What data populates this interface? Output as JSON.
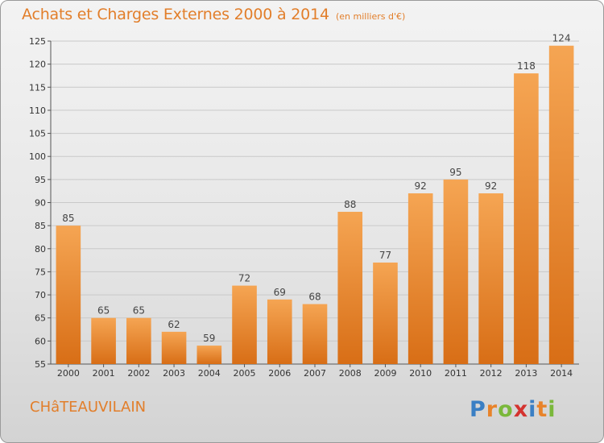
{
  "header": {
    "title": "Achats et Charges Externes 2000 à 2014",
    "unit": "(en milliers d'€)"
  },
  "footer": {
    "place": "CHâTEAUVILAIN",
    "logo": [
      "P",
      "r",
      "o",
      "x",
      "i",
      "t",
      "i"
    ]
  },
  "colors": {
    "bar_light": "#f5a553",
    "bar_dark": "#d86e16",
    "title": "#e27e2a",
    "logo": [
      "#3a7fc4",
      "#e8832a",
      "#7ab83b",
      "#d4332f",
      "#3a7fc4",
      "#e8832a",
      "#7ab83b"
    ]
  },
  "chart_data": {
    "type": "bar",
    "title": "Achats et Charges Externes 2000 à 2014",
    "categories": [
      "2000",
      "2001",
      "2002",
      "2003",
      "2004",
      "2005",
      "2006",
      "2007",
      "2008",
      "2009",
      "2010",
      "2011",
      "2012",
      "2013",
      "2014"
    ],
    "values": [
      85,
      65,
      65,
      62,
      59,
      72,
      69,
      68,
      88,
      77,
      92,
      95,
      92,
      118,
      124
    ],
    "ylim": [
      55,
      125
    ],
    "yticks": [
      55,
      60,
      65,
      70,
      75,
      80,
      85,
      90,
      95,
      100,
      105,
      110,
      115,
      120,
      125
    ],
    "grid": true,
    "data_labels": true
  }
}
